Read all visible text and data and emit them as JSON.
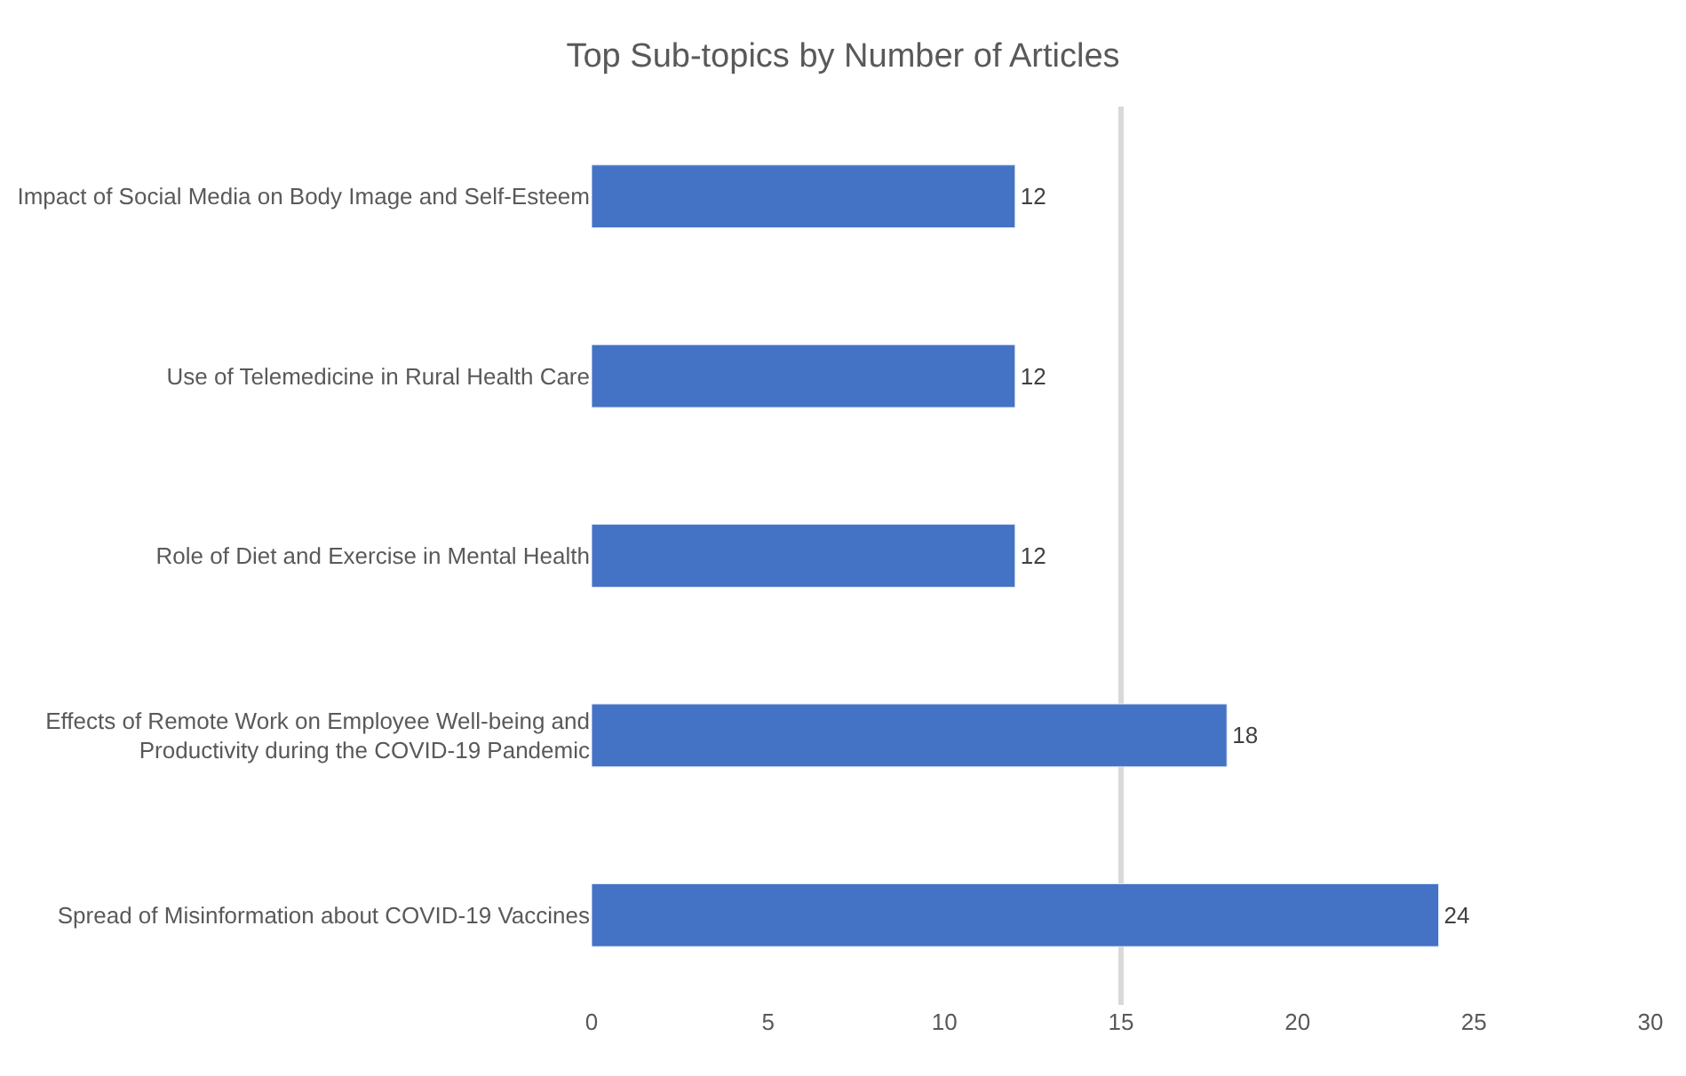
{
  "chart_data": {
    "type": "bar",
    "orientation": "horizontal",
    "title": "Top Sub-topics by Number of Articles",
    "categories": [
      "Impact of Social Media on Body Image and Self-Esteem",
      "Use of Telemedicine in Rural Health Care",
      "Role of Diet and Exercise in Mental Health",
      "Effects of Remote Work on Employee Well-being and Productivity during the COVID-19 Pandemic",
      "Spread of Misinformation about COVID-19 Vaccines"
    ],
    "values": [
      12,
      12,
      12,
      18,
      24
    ],
    "color": "#4472c4",
    "data_labels": true,
    "xlim": [
      0,
      30
    ],
    "xticks": [
      0,
      5,
      10,
      15,
      20,
      25,
      30
    ],
    "grid": false,
    "ref_lines": [
      {
        "axis": "x",
        "value": 15,
        "color": "#d9d9d9",
        "line_style": "solid"
      }
    ]
  }
}
